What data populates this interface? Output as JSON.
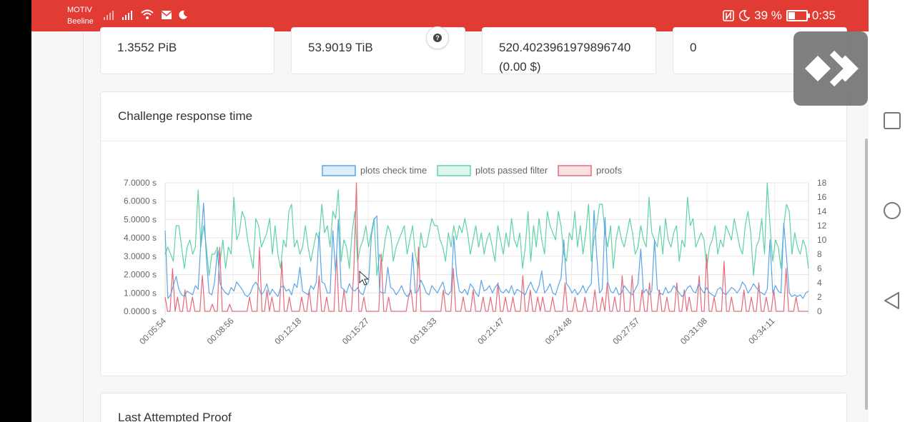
{
  "statusbar": {
    "carrier_line1": "MOTIV",
    "carrier_line2": "Beeline",
    "battery_percent": "39 %",
    "battery_level": 0.39,
    "time": "0:35",
    "icons": [
      "signal-icon",
      "signal-icon",
      "wifi-icon",
      "mail-icon",
      "moon-icon",
      "nfc-icon",
      "moon-icon",
      "battery-icon"
    ]
  },
  "stats": {
    "card1": "1.3552 PiB",
    "card2": "53.9019 TiB",
    "card3_line1": "520.4023961979896740",
    "card3_line2": "(0.00 $)",
    "card4": "0"
  },
  "chart_card": {
    "title": "Challenge response time"
  },
  "proof_card": {
    "title": "Last Attempted Proof"
  },
  "colors": {
    "statusbar": "#e23b33",
    "check_time": "#5aa5e6",
    "passed_filter": "#5ed3a4",
    "proofs": "#e66a7a"
  },
  "chart_data": {
    "type": "line",
    "legend": [
      "plots check time",
      "plots passed filter",
      "proofs"
    ],
    "legend_position": "top",
    "x_tick_labels": [
      "00:05:54",
      "00:08:56",
      "00:12:18",
      "00:15:27",
      "00:18:33",
      "00:21:47",
      "00:24:48",
      "00:27:57",
      "00:31:08",
      "00:34:11"
    ],
    "y_left_ticks": [
      "7.0000 s",
      "6.0000 s",
      "5.0000 s",
      "4.0000 s",
      "3.0000 s",
      "2.0000 s",
      "1.0000 s",
      "0.0000 s"
    ],
    "y_left_range": [
      0,
      7
    ],
    "y_right_ticks": [
      "18",
      "16",
      "14",
      "12",
      "10",
      "8",
      "6",
      "4",
      "2",
      "0"
    ],
    "y_right_range": [
      0,
      18
    ],
    "grid": true,
    "series": [
      {
        "name": "plots check time",
        "axis": "left",
        "values": [
          4.4,
          0.7,
          0.9,
          1.4,
          1.9,
          1.2,
          0.9,
          0.8,
          1.1,
          1.0,
          0.9,
          1.4,
          1.2,
          3.8,
          5.9,
          2.9,
          1.0,
          0.9,
          1.6,
          3.3,
          1.5,
          1.2,
          1.0,
          0.9,
          1.3,
          1.1,
          1.6,
          1.4,
          1.2,
          0.9,
          0.8,
          1.0,
          1.4,
          1.6,
          1.3,
          0.9,
          1.1,
          1.5,
          0.9,
          1.2,
          1.0,
          0.8,
          1.3,
          1.4,
          1.1,
          1.2,
          0.9,
          1.5,
          1.3,
          2.4,
          1.1,
          1.0,
          0.9,
          1.4,
          1.2,
          1.6,
          4.3,
          1.6,
          1.5,
          1.0,
          1.0,
          4.4,
          2.1,
          5.0,
          1.3,
          1.2,
          1.0,
          1.5,
          1.2,
          1.1,
          1.3,
          1.0,
          0.9,
          1.4,
          1.6,
          4.1,
          5.0,
          5.2,
          1.1,
          1.0,
          1.0,
          2.4,
          1.3,
          1.2,
          0.9,
          1.1,
          1.4,
          1.0,
          0.8,
          1.0,
          3.2,
          1.0,
          1.1,
          1.7,
          1.4,
          1.0,
          0.9,
          1.4,
          1.2,
          1.0,
          1.3,
          1.6,
          1.0,
          0.9,
          1.1,
          4.1,
          2.0,
          1.1,
          1.0,
          1.2,
          0.9,
          1.5,
          1.3,
          1.0,
          0.8,
          1.7,
          1.1,
          1.2,
          1.4,
          1.0,
          1.3,
          1.5,
          1.1,
          1.0,
          1.2,
          1.0,
          1.4,
          0.9,
          1.2,
          1.1,
          1.0,
          0.9,
          1.3,
          1.6,
          1.2,
          1.0,
          1.4,
          2.2,
          1.0,
          1.2,
          1.5,
          1.0,
          0.9,
          1.4,
          1.8,
          3.9,
          1.5,
          1.3,
          1.0,
          1.2,
          0.9,
          1.1,
          1.4,
          1.0,
          1.3,
          1.5,
          5.5,
          3.0,
          1.0,
          1.2,
          5.1,
          1.6,
          1.1,
          1.0,
          1.3,
          0.9,
          1.0,
          1.4,
          1.2,
          1.0,
          0.9,
          1.2,
          1.5,
          3.4,
          1.0,
          1.2,
          0.9,
          1.1,
          3.9,
          1.2,
          1.0,
          0.9,
          1.3,
          1.0,
          1.1,
          1.4,
          1.2,
          1.0,
          0.8,
          1.0,
          1.3,
          1.4,
          1.1,
          1.0,
          1.5,
          1.2,
          1.0,
          1.3,
          1.0,
          0.9,
          0.8,
          1.2,
          1.3,
          1.0,
          0.9,
          1.1,
          1.3,
          1.2,
          1.0,
          1.2,
          1.6,
          1.4,
          1.0,
          1.2,
          1.5,
          1.3,
          1.1,
          1.0,
          0.9,
          1.2,
          3.9,
          1.0,
          1.4,
          1.1,
          1.0,
          4.8,
          3.0,
          1.0,
          0.8,
          0.9,
          0.8,
          0.9,
          0.7,
          1.0,
          1.1
        ]
      },
      {
        "name": "plots passed filter",
        "axis": "right",
        "values": [
          8,
          9,
          8,
          7,
          12,
          12,
          9,
          6,
          9,
          10,
          8,
          9,
          17,
          9,
          12,
          9,
          5,
          8,
          8,
          9,
          7,
          10,
          6,
          9,
          8,
          16,
          10,
          11,
          14,
          13,
          10,
          8,
          6,
          13,
          12,
          9,
          10,
          11,
          13,
          8,
          12,
          8,
          6,
          10,
          9,
          14,
          15,
          9,
          10,
          8,
          9,
          12,
          9,
          7,
          9,
          11,
          10,
          15,
          11,
          12,
          9,
          14,
          13,
          17,
          7,
          10,
          9,
          6,
          11,
          14,
          7,
          9,
          10,
          12,
          9,
          11,
          13,
          5,
          8,
          7,
          10,
          12,
          11,
          7,
          9,
          10,
          11,
          12,
          8,
          10,
          12,
          8,
          6,
          11,
          9,
          9,
          11,
          13,
          12,
          12,
          10,
          9,
          7,
          11,
          9,
          12,
          10,
          12,
          11,
          13,
          11,
          8,
          10,
          12,
          9,
          11,
          8,
          10,
          11,
          9,
          7,
          12,
          10,
          8,
          11,
          9,
          13,
          10,
          9,
          11,
          6,
          9,
          14,
          7,
          12,
          9,
          13,
          10,
          8,
          14,
          12,
          11,
          10,
          14,
          12,
          8,
          7,
          11,
          10,
          14,
          9,
          12,
          8,
          11,
          15,
          7,
          10,
          12,
          15,
          15,
          11,
          9,
          12,
          6,
          10,
          12,
          10,
          9,
          11,
          13,
          11,
          8,
          9,
          12,
          10,
          9,
          16,
          11,
          10,
          9,
          12,
          8,
          13,
          10,
          9,
          11,
          12,
          7,
          10,
          9,
          16,
          12,
          13,
          9,
          10,
          11,
          10,
          6,
          9,
          10,
          12,
          8,
          10,
          9,
          12,
          11,
          10,
          13,
          11,
          9,
          8,
          12,
          14,
          11,
          5,
          9,
          10,
          13,
          8,
          18,
          12,
          7,
          10,
          9,
          6,
          12,
          15,
          14,
          8,
          11,
          9,
          8,
          10,
          9,
          6
        ]
      },
      {
        "name": "proofs",
        "axis": "right",
        "values": [
          2,
          0,
          0,
          6,
          0,
          2,
          0,
          0,
          3,
          0,
          0,
          2,
          0,
          0,
          0,
          5,
          0,
          0,
          0,
          1,
          0,
          0,
          9,
          0,
          0,
          0,
          1,
          0,
          0,
          0,
          0,
          0,
          0,
          0,
          2,
          0,
          0,
          0,
          9,
          0,
          0,
          3,
          0,
          2,
          0,
          0,
          0,
          7,
          0,
          0,
          2,
          0,
          0,
          0,
          0,
          2,
          0,
          0,
          3,
          0,
          0,
          0,
          5,
          0,
          0,
          2,
          0,
          0,
          0,
          8,
          0,
          0,
          3,
          0,
          0,
          0,
          6,
          18,
          0,
          0,
          2,
          0,
          0,
          0,
          0,
          0,
          0,
          8,
          0,
          0,
          2,
          0,
          0,
          0,
          0,
          0,
          0,
          0,
          2,
          3,
          0,
          0,
          9,
          0,
          0,
          0,
          0,
          0,
          0,
          0,
          0,
          0,
          3,
          0,
          0,
          0,
          6,
          0,
          0,
          0,
          2,
          0,
          0,
          0,
          3,
          0,
          0,
          0,
          2,
          0,
          0,
          2,
          0,
          0,
          4,
          0,
          0,
          2,
          0,
          0,
          2,
          0,
          0,
          0,
          5,
          0,
          0,
          3,
          0,
          0,
          2,
          0,
          2,
          0,
          0,
          0,
          2,
          0,
          0,
          0,
          0,
          4,
          0,
          0,
          0,
          2,
          0,
          0,
          0,
          2,
          0,
          0,
          0,
          3,
          0,
          0,
          2,
          0,
          4,
          0,
          0,
          2,
          0,
          0,
          5,
          0,
          0,
          0,
          5,
          0,
          0,
          0,
          3,
          0,
          0,
          4,
          0,
          0,
          0,
          3,
          0,
          0,
          2,
          0,
          0,
          0,
          4,
          0,
          0,
          3,
          0,
          2,
          0,
          0,
          0,
          5,
          0,
          0,
          8,
          0,
          0,
          2,
          0,
          0,
          0,
          7,
          0,
          0,
          2,
          0,
          0,
          0,
          0,
          3,
          0,
          0,
          2,
          0,
          0,
          4,
          0,
          0,
          2,
          0,
          0,
          3,
          0,
          0,
          0,
          0,
          6,
          0,
          0,
          0,
          2,
          0,
          0,
          0,
          0,
          0
        ]
      }
    ]
  }
}
